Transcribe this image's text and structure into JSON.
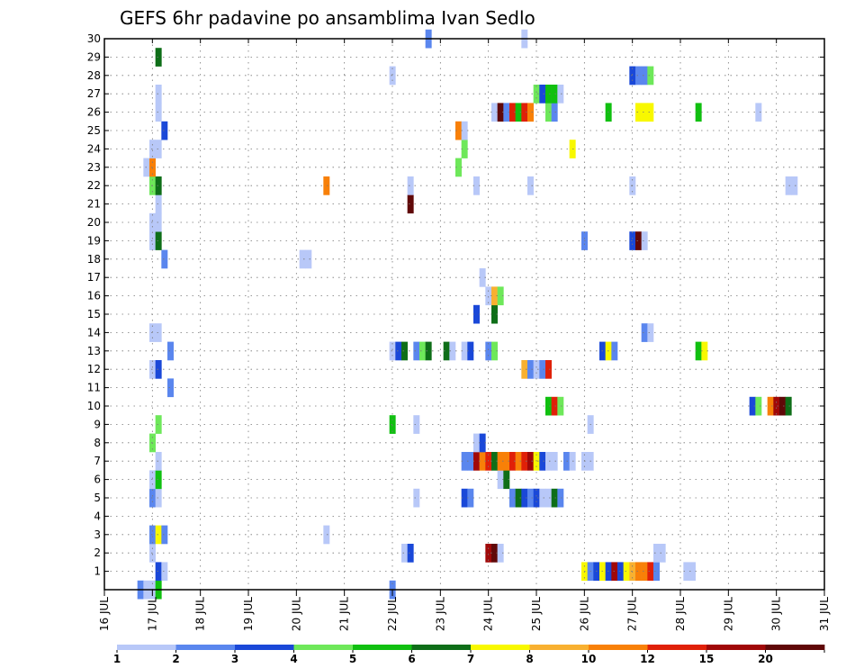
{
  "chart_data": {
    "type": "heatmap",
    "title": "GEFS 6hr padavine po ansamblima Ivan Sedlo",
    "xlabel": "",
    "ylabel": "",
    "x_ticks": [
      "16 JUL",
      "17 JUL",
      "18 JUL",
      "19 JUL",
      "20 JUL",
      "21 JUL",
      "22 JUL",
      "23 JUL",
      "24 JUL",
      "25 JUL",
      "26 JUL",
      "27 JUL",
      "28 JUL",
      "29 JUL",
      "30 JUL",
      "31 JUL"
    ],
    "y_ticks": [
      1,
      2,
      3,
      4,
      5,
      6,
      7,
      8,
      9,
      10,
      11,
      12,
      13,
      14,
      15,
      16,
      17,
      18,
      19,
      20,
      21,
      22,
      23,
      24,
      25,
      26,
      27,
      28,
      29,
      30
    ],
    "xlim": [
      16,
      31
    ],
    "ylim": [
      0,
      30
    ],
    "grid": true,
    "colorbar": {
      "labels": [
        "1",
        "2",
        "3",
        "4",
        "5",
        "6",
        "7",
        "8",
        "10",
        "12",
        "15",
        "20"
      ],
      "colors": [
        "#b8c8f8",
        "#5a86ee",
        "#1a48d8",
        "#6ee85a",
        "#10c010",
        "#0e6e18",
        "#f8f800",
        "#f8b030",
        "#f88008",
        "#e02008",
        "#a00808",
        "#600808"
      ]
    },
    "cells": [
      {
        "day": 16.75,
        "member": 0,
        "level": 2
      },
      {
        "day": 16.875,
        "member": 0,
        "level": 1
      },
      {
        "day": 17.0,
        "member": 0,
        "level": 1
      },
      {
        "day": 17.125,
        "member": 0,
        "level": 5
      },
      {
        "day": 22.0,
        "member": 0,
        "level": 2
      },
      {
        "day": 17.125,
        "member": 1,
        "level": 3
      },
      {
        "day": 17.25,
        "member": 1,
        "level": 1
      },
      {
        "day": 26.0,
        "member": 1,
        "level": 7
      },
      {
        "day": 26.125,
        "member": 1,
        "level": 2
      },
      {
        "day": 26.25,
        "member": 1,
        "level": 3
      },
      {
        "day": 26.375,
        "member": 1,
        "level": 7
      },
      {
        "day": 26.5,
        "member": 1,
        "level": 3
      },
      {
        "day": 26.625,
        "member": 1,
        "level": 11
      },
      {
        "day": 26.75,
        "member": 1,
        "level": 3
      },
      {
        "day": 26.875,
        "member": 1,
        "level": 7
      },
      {
        "day": 27.0,
        "member": 1,
        "level": 8
      },
      {
        "day": 27.125,
        "member": 1,
        "level": 9
      },
      {
        "day": 27.25,
        "member": 1,
        "level": 9
      },
      {
        "day": 27.375,
        "member": 1,
        "level": 10
      },
      {
        "day": 27.5,
        "member": 1,
        "level": 2
      },
      {
        "day": 28.125,
        "member": 1,
        "level": 1
      },
      {
        "day": 28.25,
        "member": 1,
        "level": 1
      },
      {
        "day": 17.0,
        "member": 2,
        "level": 1
      },
      {
        "day": 22.25,
        "member": 2,
        "level": 1
      },
      {
        "day": 22.375,
        "member": 2,
        "level": 3
      },
      {
        "day": 24.0,
        "member": 2,
        "level": 11
      },
      {
        "day": 24.125,
        "member": 2,
        "level": 12
      },
      {
        "day": 24.25,
        "member": 2,
        "level": 1
      },
      {
        "day": 27.5,
        "member": 2,
        "level": 1
      },
      {
        "day": 27.625,
        "member": 2,
        "level": 1
      },
      {
        "day": 17.0,
        "member": 3,
        "level": 2
      },
      {
        "day": 17.125,
        "member": 3,
        "level": 7
      },
      {
        "day": 17.25,
        "member": 3,
        "level": 2
      },
      {
        "day": 20.625,
        "member": 3,
        "level": 1
      },
      {
        "day": 17.0,
        "member": 5,
        "level": 2
      },
      {
        "day": 17.125,
        "member": 5,
        "level": 1
      },
      {
        "day": 22.5,
        "member": 5,
        "level": 1
      },
      {
        "day": 23.5,
        "member": 5,
        "level": 3
      },
      {
        "day": 23.625,
        "member": 5,
        "level": 2
      },
      {
        "day": 24.5,
        "member": 5,
        "level": 2
      },
      {
        "day": 24.625,
        "member": 5,
        "level": 6
      },
      {
        "day": 24.75,
        "member": 5,
        "level": 3
      },
      {
        "day": 24.875,
        "member": 5,
        "level": 2
      },
      {
        "day": 25.0,
        "member": 5,
        "level": 3
      },
      {
        "day": 25.125,
        "member": 5,
        "level": 1
      },
      {
        "day": 25.25,
        "member": 5,
        "level": 1
      },
      {
        "day": 25.375,
        "member": 5,
        "level": 6
      },
      {
        "day": 25.5,
        "member": 5,
        "level": 2
      },
      {
        "day": 17.0,
        "member": 6,
        "level": 1
      },
      {
        "day": 17.125,
        "member": 6,
        "level": 5
      },
      {
        "day": 24.25,
        "member": 6,
        "level": 1
      },
      {
        "day": 24.375,
        "member": 6,
        "level": 6
      },
      {
        "day": 17.125,
        "member": 7,
        "level": 1
      },
      {
        "day": 23.5,
        "member": 7,
        "level": 2
      },
      {
        "day": 23.625,
        "member": 7,
        "level": 2
      },
      {
        "day": 23.75,
        "member": 7,
        "level": 11
      },
      {
        "day": 23.875,
        "member": 7,
        "level": 9
      },
      {
        "day": 24.0,
        "member": 7,
        "level": 10
      },
      {
        "day": 24.125,
        "member": 7,
        "level": 6
      },
      {
        "day": 24.25,
        "member": 7,
        "level": 9
      },
      {
        "day": 24.375,
        "member": 7,
        "level": 9
      },
      {
        "day": 24.5,
        "member": 7,
        "level": 10
      },
      {
        "day": 24.625,
        "member": 7,
        "level": 9
      },
      {
        "day": 24.75,
        "member": 7,
        "level": 10
      },
      {
        "day": 24.875,
        "member": 7,
        "level": 11
      },
      {
        "day": 25.0,
        "member": 7,
        "level": 7
      },
      {
        "day": 25.125,
        "member": 7,
        "level": 3
      },
      {
        "day": 25.25,
        "member": 7,
        "level": 1
      },
      {
        "day": 25.375,
        "member": 7,
        "level": 1
      },
      {
        "day": 25.625,
        "member": 7,
        "level": 2
      },
      {
        "day": 25.75,
        "member": 7,
        "level": 1
      },
      {
        "day": 26.0,
        "member": 7,
        "level": 1
      },
      {
        "day": 26.125,
        "member": 7,
        "level": 1
      },
      {
        "day": 17.0,
        "member": 8,
        "level": 4
      },
      {
        "day": 23.75,
        "member": 8,
        "level": 1
      },
      {
        "day": 23.875,
        "member": 8,
        "level": 3
      },
      {
        "day": 17.125,
        "member": 9,
        "level": 4
      },
      {
        "day": 22.0,
        "member": 9,
        "level": 5
      },
      {
        "day": 22.5,
        "member": 9,
        "level": 1
      },
      {
        "day": 26.125,
        "member": 9,
        "level": 1
      },
      {
        "day": 25.25,
        "member": 10,
        "level": 5
      },
      {
        "day": 25.375,
        "member": 10,
        "level": 10
      },
      {
        "day": 25.5,
        "member": 10,
        "level": 4
      },
      {
        "day": 29.5,
        "member": 10,
        "level": 3
      },
      {
        "day": 29.625,
        "member": 10,
        "level": 4
      },
      {
        "day": 29.875,
        "member": 10,
        "level": 9
      },
      {
        "day": 30.0,
        "member": 10,
        "level": 11
      },
      {
        "day": 30.125,
        "member": 10,
        "level": 12
      },
      {
        "day": 30.25,
        "member": 10,
        "level": 6
      },
      {
        "day": 17.375,
        "member": 11,
        "level": 2
      },
      {
        "day": 17.0,
        "member": 12,
        "level": 1
      },
      {
        "day": 17.125,
        "member": 12,
        "level": 3
      },
      {
        "day": 24.75,
        "member": 12,
        "level": 8
      },
      {
        "day": 24.875,
        "member": 12,
        "level": 2
      },
      {
        "day": 25.0,
        "member": 12,
        "level": 1
      },
      {
        "day": 25.125,
        "member": 12,
        "level": 2
      },
      {
        "day": 25.25,
        "member": 12,
        "level": 10
      },
      {
        "day": 17.375,
        "member": 13,
        "level": 2
      },
      {
        "day": 22.0,
        "member": 13,
        "level": 1
      },
      {
        "day": 22.125,
        "member": 13,
        "level": 3
      },
      {
        "day": 22.25,
        "member": 13,
        "level": 6
      },
      {
        "day": 22.5,
        "member": 13,
        "level": 2
      },
      {
        "day": 22.625,
        "member": 13,
        "level": 4
      },
      {
        "day": 22.75,
        "member": 13,
        "level": 6
      },
      {
        "day": 23.125,
        "member": 13,
        "level": 6
      },
      {
        "day": 23.25,
        "member": 13,
        "level": 1
      },
      {
        "day": 23.5,
        "member": 13,
        "level": 1
      },
      {
        "day": 23.625,
        "member": 13,
        "level": 3
      },
      {
        "day": 24.0,
        "member": 13,
        "level": 2
      },
      {
        "day": 24.125,
        "member": 13,
        "level": 4
      },
      {
        "day": 26.375,
        "member": 13,
        "level": 3
      },
      {
        "day": 26.5,
        "member": 13,
        "level": 7
      },
      {
        "day": 26.625,
        "member": 13,
        "level": 2
      },
      {
        "day": 28.375,
        "member": 13,
        "level": 5
      },
      {
        "day": 28.5,
        "member": 13,
        "level": 7
      },
      {
        "day": 17.0,
        "member": 14,
        "level": 1
      },
      {
        "day": 17.125,
        "member": 14,
        "level": 1
      },
      {
        "day": 27.25,
        "member": 14,
        "level": 2
      },
      {
        "day": 27.375,
        "member": 14,
        "level": 1
      },
      {
        "day": 23.75,
        "member": 15,
        "level": 3
      },
      {
        "day": 24.125,
        "member": 15,
        "level": 6
      },
      {
        "day": 24.0,
        "member": 16,
        "level": 1
      },
      {
        "day": 24.125,
        "member": 16,
        "level": 8
      },
      {
        "day": 24.25,
        "member": 16,
        "level": 4
      },
      {
        "day": 23.875,
        "member": 17,
        "level": 1
      },
      {
        "day": 17.25,
        "member": 18,
        "level": 2
      },
      {
        "day": 20.125,
        "member": 18,
        "level": 1
      },
      {
        "day": 20.25,
        "member": 18,
        "level": 1
      },
      {
        "day": 17.0,
        "member": 19,
        "level": 1
      },
      {
        "day": 17.125,
        "member": 19,
        "level": 6
      },
      {
        "day": 26.0,
        "member": 19,
        "level": 2
      },
      {
        "day": 27.0,
        "member": 19,
        "level": 3
      },
      {
        "day": 27.125,
        "member": 19,
        "level": 12
      },
      {
        "day": 27.25,
        "member": 19,
        "level": 1
      },
      {
        "day": 17.0,
        "member": 20,
        "level": 1
      },
      {
        "day": 17.125,
        "member": 20,
        "level": 1
      },
      {
        "day": 17.125,
        "member": 21,
        "level": 1
      },
      {
        "day": 22.375,
        "member": 21,
        "level": 12
      },
      {
        "day": 17.0,
        "member": 22,
        "level": 4
      },
      {
        "day": 17.125,
        "member": 22,
        "level": 6
      },
      {
        "day": 20.625,
        "member": 22,
        "level": 9
      },
      {
        "day": 22.375,
        "member": 22,
        "level": 1
      },
      {
        "day": 23.75,
        "member": 22,
        "level": 1
      },
      {
        "day": 24.875,
        "member": 22,
        "level": 1
      },
      {
        "day": 27.0,
        "member": 22,
        "level": 1
      },
      {
        "day": 30.25,
        "member": 22,
        "level": 1
      },
      {
        "day": 30.375,
        "member": 22,
        "level": 1
      },
      {
        "day": 16.875,
        "member": 23,
        "level": 1
      },
      {
        "day": 17.0,
        "member": 23,
        "level": 9
      },
      {
        "day": 23.375,
        "member": 23,
        "level": 4
      },
      {
        "day": 17.0,
        "member": 24,
        "level": 1
      },
      {
        "day": 17.125,
        "member": 24,
        "level": 1
      },
      {
        "day": 23.5,
        "member": 24,
        "level": 4
      },
      {
        "day": 25.75,
        "member": 24,
        "level": 7
      },
      {
        "day": 17.25,
        "member": 25,
        "level": 3
      },
      {
        "day": 23.375,
        "member": 25,
        "level": 9
      },
      {
        "day": 23.5,
        "member": 25,
        "level": 1
      },
      {
        "day": 17.125,
        "member": 26,
        "level": 1
      },
      {
        "day": 24.125,
        "member": 26,
        "level": 1
      },
      {
        "day": 24.25,
        "member": 26,
        "level": 12
      },
      {
        "day": 24.375,
        "member": 26,
        "level": 2
      },
      {
        "day": 24.5,
        "member": 26,
        "level": 10
      },
      {
        "day": 24.625,
        "member": 26,
        "level": 5
      },
      {
        "day": 24.75,
        "member": 26,
        "level": 10
      },
      {
        "day": 24.875,
        "member": 26,
        "level": 9
      },
      {
        "day": 25.25,
        "member": 26,
        "level": 4
      },
      {
        "day": 25.375,
        "member": 26,
        "level": 2
      },
      {
        "day": 26.5,
        "member": 26,
        "level": 5
      },
      {
        "day": 27.125,
        "member": 26,
        "level": 7
      },
      {
        "day": 27.25,
        "member": 26,
        "level": 7
      },
      {
        "day": 27.375,
        "member": 26,
        "level": 7
      },
      {
        "day": 28.375,
        "member": 26,
        "level": 5
      },
      {
        "day": 29.625,
        "member": 26,
        "level": 1
      },
      {
        "day": 17.125,
        "member": 27,
        "level": 1
      },
      {
        "day": 25.0,
        "member": 27,
        "level": 4
      },
      {
        "day": 25.125,
        "member": 27,
        "level": 3
      },
      {
        "day": 25.25,
        "member": 27,
        "level": 5
      },
      {
        "day": 25.375,
        "member": 27,
        "level": 5
      },
      {
        "day": 25.5,
        "member": 27,
        "level": 1
      },
      {
        "day": 22.0,
        "member": 28,
        "level": 1
      },
      {
        "day": 27.0,
        "member": 28,
        "level": 3
      },
      {
        "day": 27.125,
        "member": 28,
        "level": 2
      },
      {
        "day": 27.25,
        "member": 28,
        "level": 2
      },
      {
        "day": 27.375,
        "member": 28,
        "level": 4
      },
      {
        "day": 17.125,
        "member": 29,
        "level": 6
      },
      {
        "day": 22.75,
        "member": 30,
        "level": 2
      },
      {
        "day": 24.75,
        "member": 30,
        "level": 1
      }
    ]
  }
}
